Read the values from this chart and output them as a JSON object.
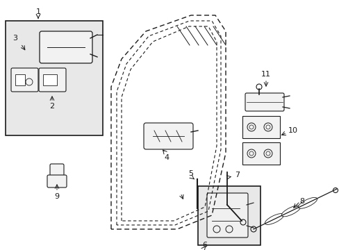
{
  "bg_color": "#ffffff",
  "line_color": "#1a1a1a",
  "gray_fill": "#e8e8e8",
  "figsize": [
    4.89,
    3.6
  ],
  "dpi": 100,
  "door": {
    "outer": {
      "x": [
        0.315,
        0.315,
        0.34,
        0.4,
        0.51,
        0.59,
        0.63,
        0.63,
        0.59,
        0.48,
        0.355,
        0.315
      ],
      "y": [
        0.1,
        0.63,
        0.76,
        0.88,
        0.96,
        0.96,
        0.9,
        0.4,
        0.13,
        0.1,
        0.1,
        0.1
      ]
    },
    "inner1": {
      "x": [
        0.34,
        0.34,
        0.365,
        0.42,
        0.51,
        0.575,
        0.605,
        0.605,
        0.565,
        0.465,
        0.375,
        0.34
      ],
      "y": [
        0.13,
        0.61,
        0.73,
        0.85,
        0.93,
        0.93,
        0.87,
        0.42,
        0.155,
        0.13,
        0.13,
        0.13
      ]
    },
    "inner2": {
      "x": [
        0.33,
        0.33,
        0.355,
        0.41,
        0.51,
        0.582,
        0.618,
        0.618,
        0.578,
        0.472,
        0.364,
        0.33
      ],
      "y": [
        0.115,
        0.62,
        0.745,
        0.865,
        0.946,
        0.946,
        0.885,
        0.41,
        0.142,
        0.115,
        0.115,
        0.115
      ]
    }
  }
}
